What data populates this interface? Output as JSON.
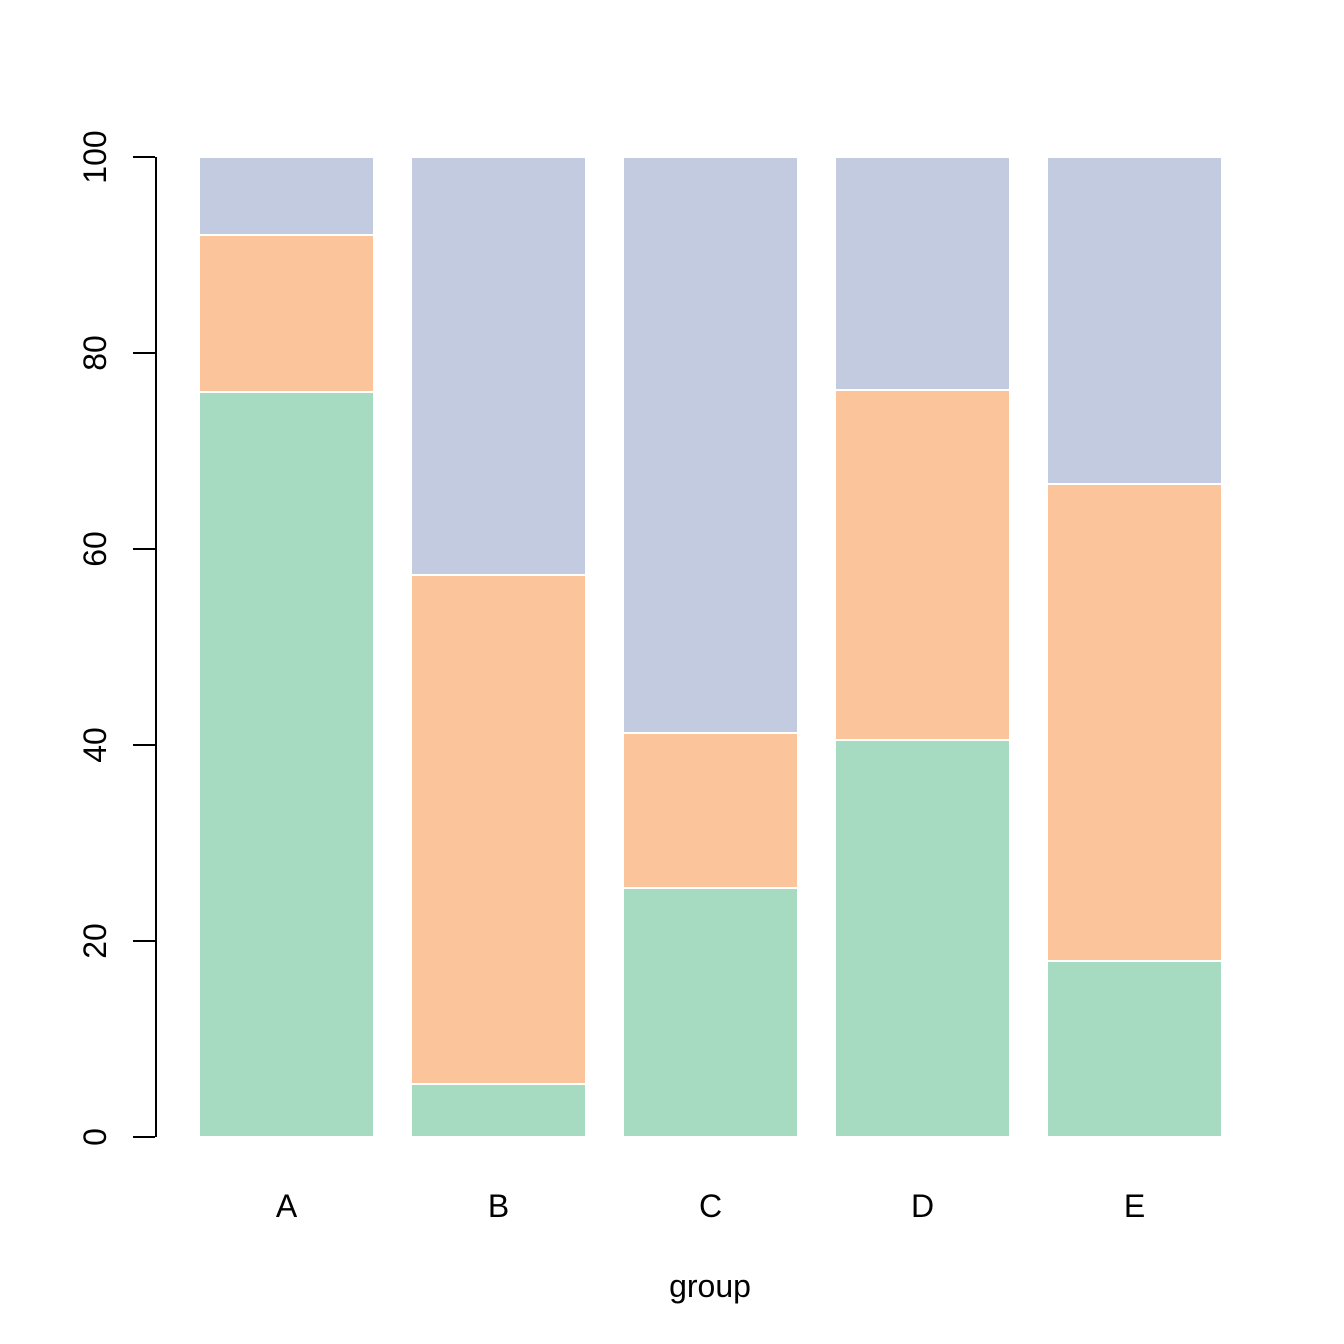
{
  "figure": {
    "background": "#FFFFFF",
    "text_color": "#000000"
  },
  "chart_data": {
    "type": "bar",
    "stacked": true,
    "orientation": "vertical",
    "title": "",
    "xlabel": "group",
    "ylabel": "",
    "ylim": [
      0,
      100
    ],
    "yticks": [
      0,
      20,
      40,
      60,
      80,
      100
    ],
    "grid": false,
    "legend": "none",
    "categories": [
      "A",
      "B",
      "C",
      "D",
      "E"
    ],
    "series": [
      {
        "name": "bottom-green-segment",
        "color": "#A6DBC1",
        "values": [
          76.0,
          5.4,
          25.4,
          40.5,
          18.0
        ]
      },
      {
        "name": "middle-orange-segment",
        "color": "#FBC49B",
        "values": [
          16.0,
          51.9,
          15.8,
          35.7,
          48.6
        ]
      },
      {
        "name": "top-blue-segment",
        "color": "#C2CBDF",
        "values": [
          8.0,
          42.7,
          58.8,
          23.8,
          33.4
        ]
      }
    ],
    "segment_border_color": "#FFFFFF"
  }
}
